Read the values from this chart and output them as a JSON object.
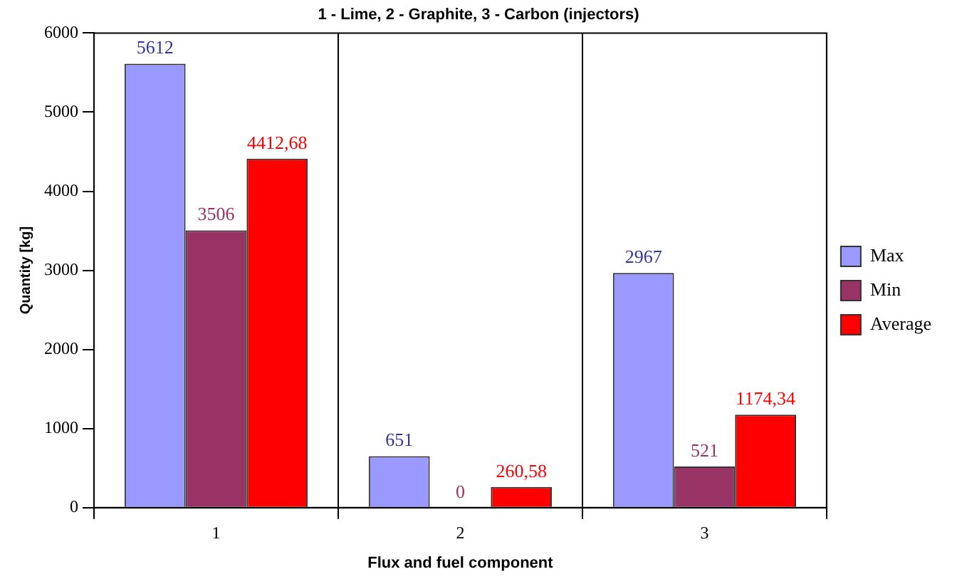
{
  "chart_data": {
    "type": "bar",
    "title": "1 - Lime, 2 - Graphite, 3 - Carbon (injectors)",
    "xlabel": "Flux and fuel component",
    "ylabel": "Quantity [kg]",
    "categories": [
      "1",
      "2",
      "3"
    ],
    "series": [
      {
        "name": "Max",
        "color": "#9999ff",
        "values": [
          5612,
          651,
          2967
        ],
        "value_labels": [
          "5612",
          "651",
          "2967"
        ]
      },
      {
        "name": "Min",
        "color": "#993366",
        "values": [
          3506,
          0,
          521
        ],
        "value_labels": [
          "3506",
          "0",
          "521"
        ]
      },
      {
        "name": "Average",
        "color": "#ff0000",
        "values": [
          4412.68,
          260.58,
          1174.34
        ],
        "value_labels": [
          "4412,68",
          "260,58",
          "1174,34"
        ]
      }
    ],
    "ylim": [
      0,
      6000
    ],
    "yticks": [
      0,
      1000,
      2000,
      3000,
      4000,
      5000,
      6000
    ],
    "grid": "x",
    "legend": "right"
  }
}
